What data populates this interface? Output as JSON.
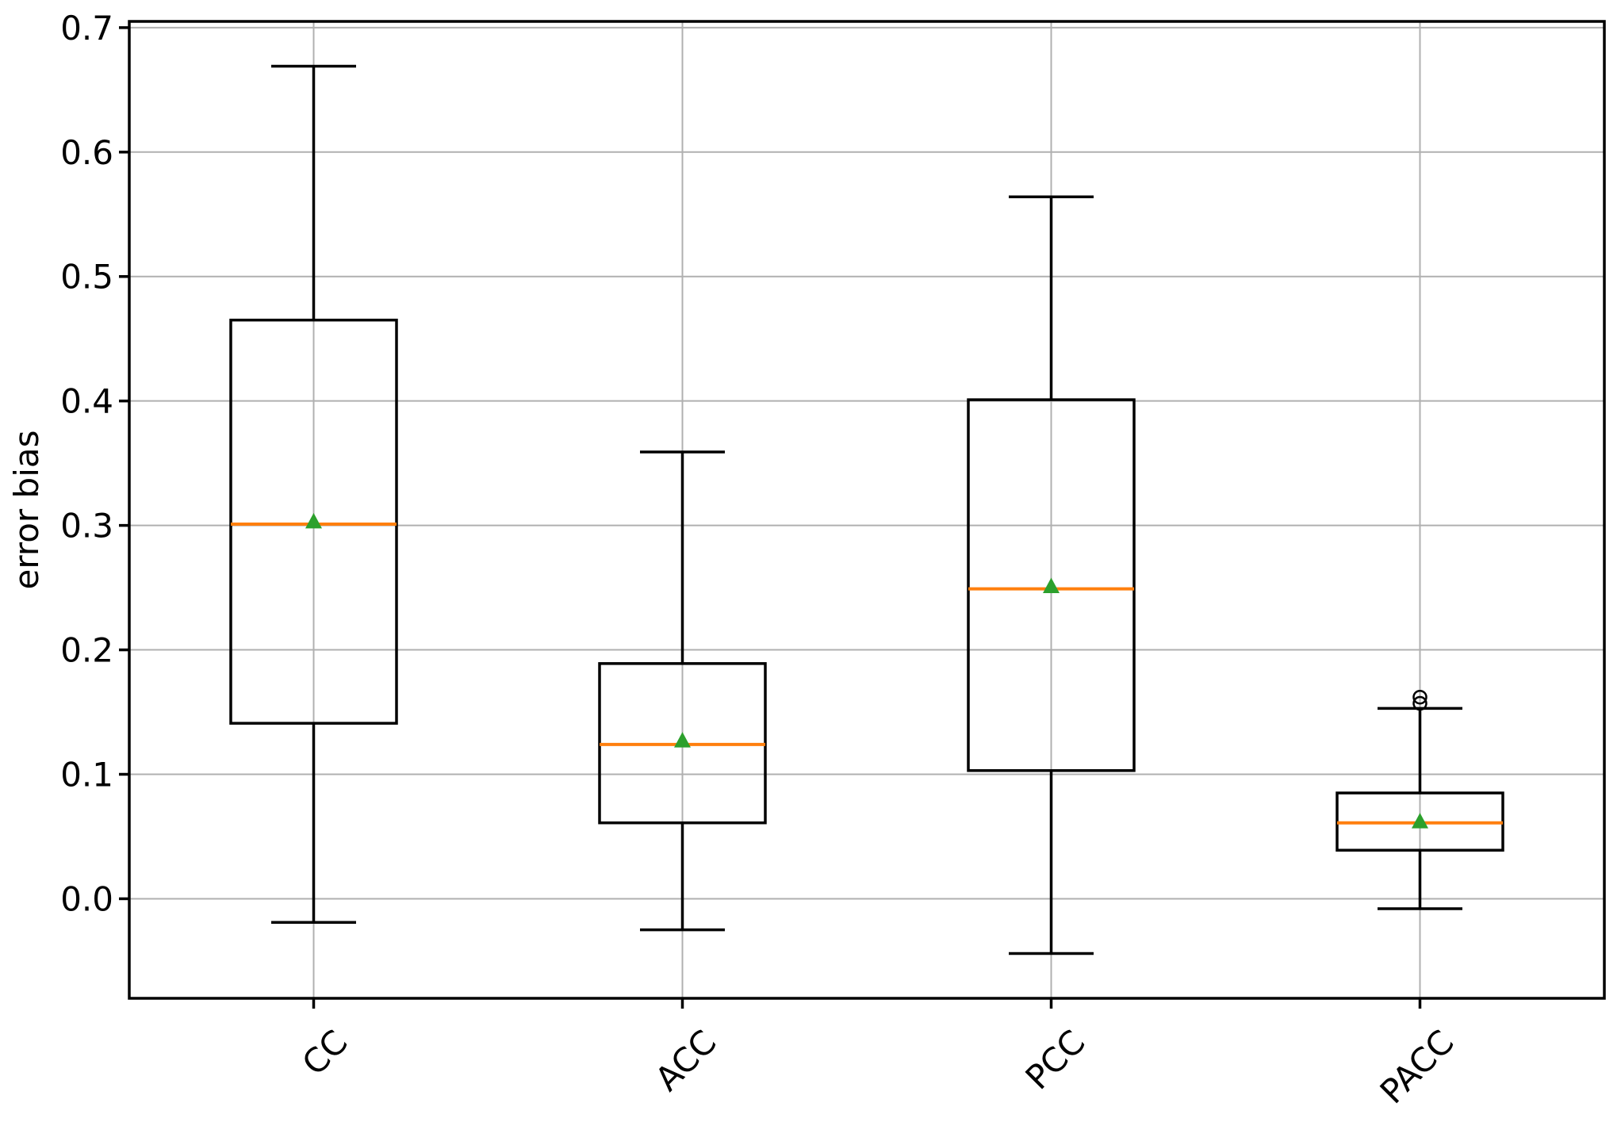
{
  "chart_data": {
    "type": "box",
    "title": "",
    "xlabel": "",
    "ylabel": "error bias",
    "categories": [
      "CC",
      "ACC",
      "PCC",
      "PACC"
    ],
    "y_ticks": [
      0.0,
      0.1,
      0.2,
      0.3,
      0.4,
      0.5,
      0.6,
      0.7
    ],
    "y_tick_labels": [
      "0.0",
      "0.1",
      "0.2",
      "0.3",
      "0.4",
      "0.5",
      "0.6",
      "0.7"
    ],
    "ylim": [
      -0.08,
      0.705
    ],
    "grid": true,
    "legend": "none",
    "series": [
      {
        "label": "CC",
        "whisker_low": -0.019,
        "q1": 0.141,
        "median": 0.301,
        "q3": 0.465,
        "whisker_high": 0.669,
        "mean": 0.303,
        "outliers": []
      },
      {
        "label": "ACC",
        "whisker_low": -0.025,
        "q1": 0.061,
        "median": 0.124,
        "q3": 0.189,
        "whisker_high": 0.359,
        "mean": 0.127,
        "outliers": []
      },
      {
        "label": "PCC",
        "whisker_low": -0.044,
        "q1": 0.103,
        "median": 0.249,
        "q3": 0.401,
        "whisker_high": 0.564,
        "mean": 0.251,
        "outliers": []
      },
      {
        "label": "PACC",
        "whisker_low": -0.008,
        "q1": 0.039,
        "median": 0.061,
        "q3": 0.085,
        "whisker_high": 0.153,
        "mean": 0.062,
        "outliers": [
          0.157,
          0.162
        ]
      }
    ],
    "colors": {
      "median": "#ff7f0e",
      "mean": "#2ca02c",
      "box_line": "#000000",
      "grid": "#b0b0b0",
      "background": "#ffffff"
    }
  }
}
